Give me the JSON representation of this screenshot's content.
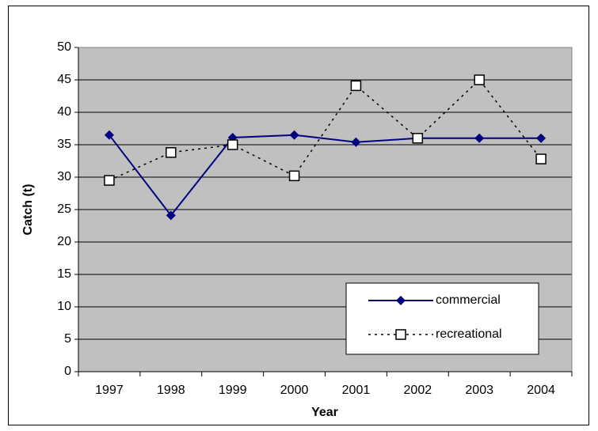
{
  "chart_data": {
    "type": "line",
    "x_label": "Year",
    "y_label": "Catch (t)",
    "categories": [
      "1997",
      "1998",
      "1999",
      "2000",
      "2001",
      "2002",
      "2003",
      "2004"
    ],
    "series": [
      {
        "name": "commercial",
        "color": "#000080",
        "values": [
          36.5,
          24.1,
          36.1,
          36.5,
          35.4,
          36.0,
          36.0,
          36.0
        ]
      },
      {
        "name": "recreational",
        "color": "#000000",
        "values": [
          29.5,
          33.8,
          35.0,
          30.2,
          44.1,
          36.0,
          45.0,
          32.8
        ]
      }
    ],
    "ylim": [
      0,
      50
    ],
    "yticks": [
      0,
      5,
      10,
      15,
      20,
      25,
      30,
      35,
      40,
      45,
      50
    ],
    "grid": true,
    "plot_background": "#c0c0c0",
    "legend": "lower right"
  }
}
